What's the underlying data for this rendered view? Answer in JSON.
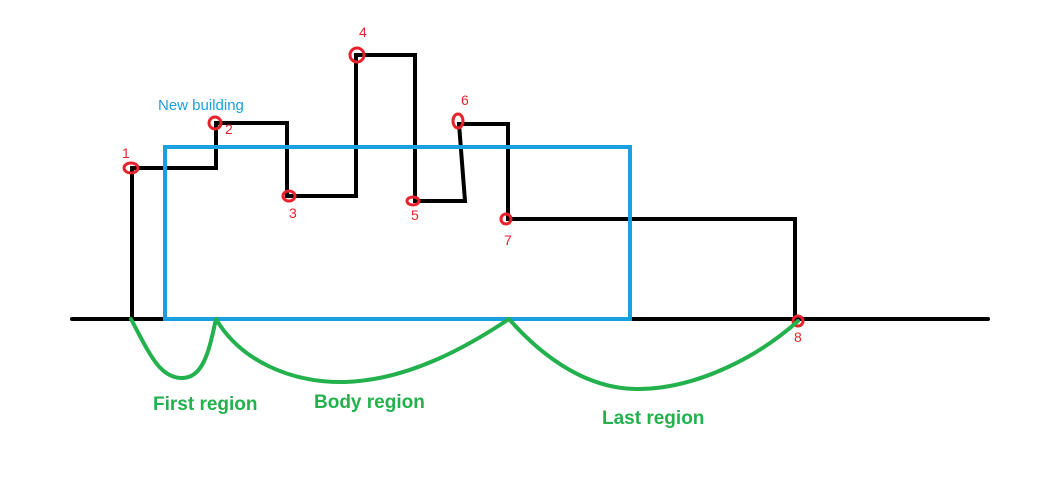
{
  "colors": {
    "skyline": "#000000",
    "building": "#1a9fe0",
    "points": "#e8222a",
    "regions": "#22b14c"
  },
  "building_label": "New building",
  "point_labels": [
    "1",
    "2",
    "3",
    "4",
    "5",
    "6",
    "7",
    "8"
  ],
  "regions": {
    "first": "First region",
    "body": "Body region",
    "last": "Last region"
  }
}
